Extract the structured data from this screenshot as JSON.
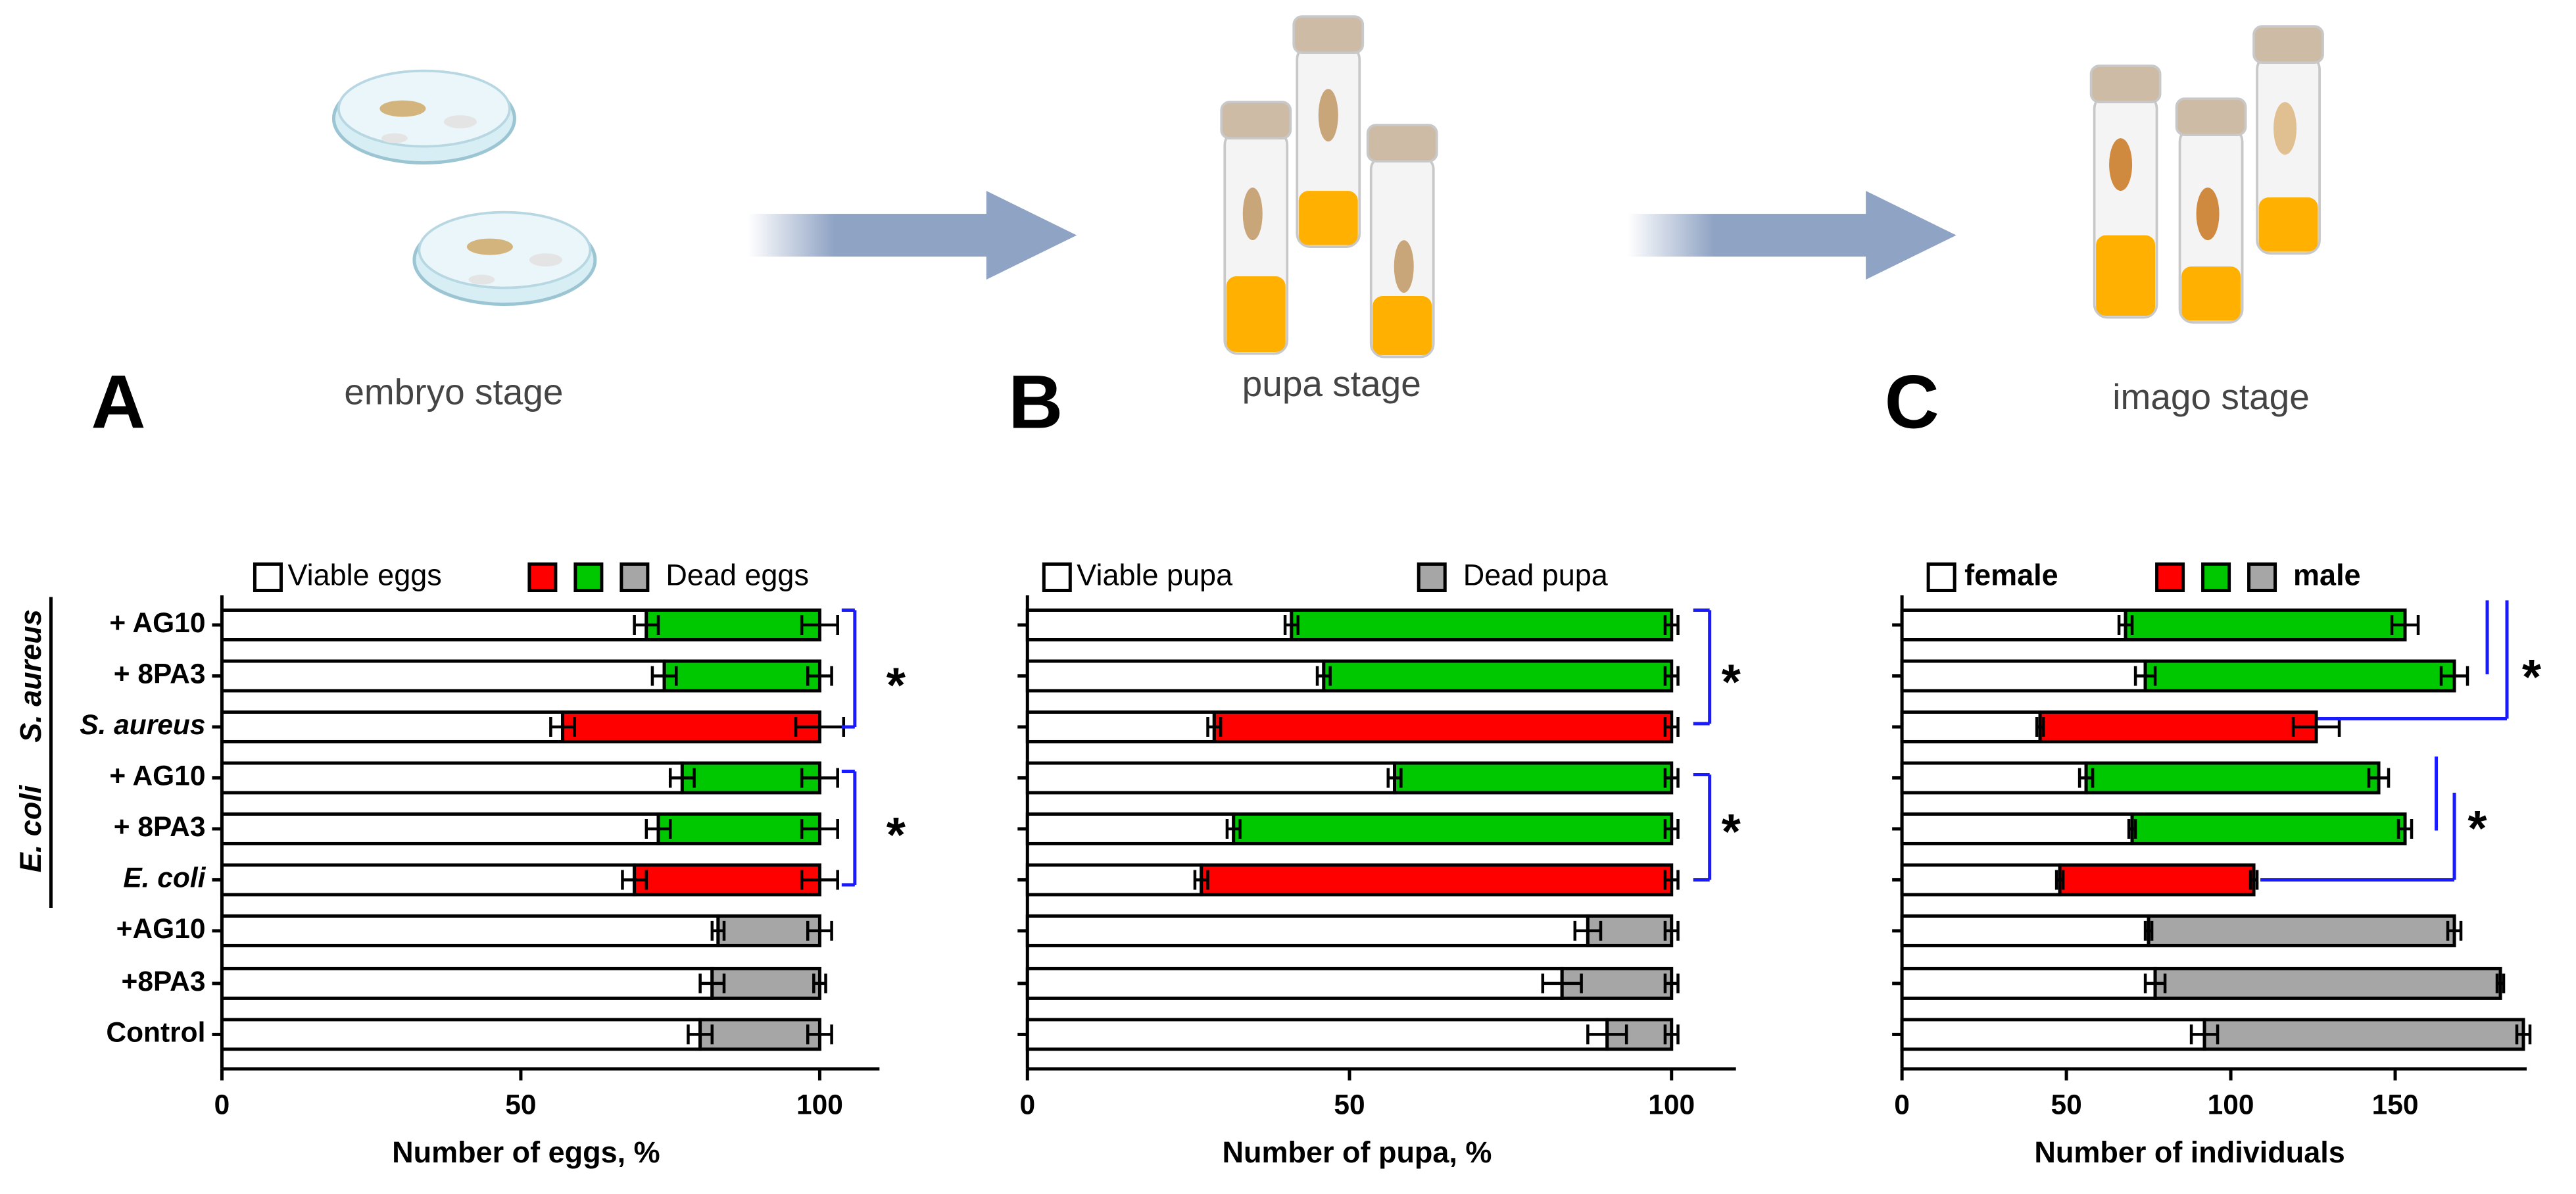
{
  "illustration": {
    "panels": [
      "A",
      "B",
      "C"
    ],
    "stages": [
      "embryo stage",
      "pupa stage",
      "imago stage"
    ]
  },
  "chart_data": [
    {
      "type": "stacked-bar-horizontal",
      "categories": [
        "+ AG10",
        "+ 8PA3",
        "S. aureus",
        "+ AG10",
        "+ 8PA3",
        "E. coli",
        "+AG10",
        "+8PA3",
        "Control"
      ],
      "group_labels": [
        "S. aureus",
        "E. coli"
      ],
      "series": [
        {
          "name": "Viable eggs",
          "color": "#ffffff",
          "values": [
            71,
            74,
            57,
            77,
            73,
            69,
            83,
            82,
            80
          ],
          "errors": [
            2,
            2,
            2,
            2,
            2,
            2,
            1,
            2,
            2
          ]
        },
        {
          "name": "Dead eggs",
          "legend_colors": [
            "#ff0000",
            "#00c800",
            "#a6a6a6"
          ],
          "colors": [
            "#00c800",
            "#00c800",
            "#ff0000",
            "#00c800",
            "#00c800",
            "#ff0000",
            "#a6a6a6",
            "#a6a6a6",
            "#a6a6a6"
          ],
          "values": [
            29,
            26,
            43,
            23,
            27,
            31,
            17,
            18,
            20
          ],
          "errors": [
            3,
            2,
            4,
            3,
            3,
            3,
            2,
            1,
            2
          ]
        }
      ],
      "xlim": [
        0,
        110
      ],
      "xticks": [
        0,
        50,
        100
      ],
      "xlabel": "Number of eggs, %",
      "significance": [
        "*",
        "*"
      ]
    },
    {
      "type": "stacked-bar-horizontal",
      "categories": [
        null,
        null,
        null,
        null,
        null,
        null,
        null,
        null,
        null
      ],
      "series": [
        {
          "name": "Viable pupa",
          "color": "#ffffff",
          "values": [
            41,
            46,
            29,
            57,
            32,
            27,
            87,
            83,
            90
          ],
          "errors": [
            1,
            1,
            1,
            1,
            1,
            1,
            2,
            3,
            3
          ]
        },
        {
          "name": "Dead pupa",
          "legend_colors": [
            "#a6a6a6"
          ],
          "colors": [
            "#00c800",
            "#00c800",
            "#ff0000",
            "#00c800",
            "#00c800",
            "#ff0000",
            "#a6a6a6",
            "#a6a6a6",
            "#a6a6a6"
          ],
          "values": [
            59,
            54,
            71,
            43,
            68,
            73,
            13,
            17,
            10
          ],
          "errors": [
            1,
            1,
            1,
            1,
            1,
            1,
            1,
            1,
            1
          ]
        }
      ],
      "xlim": [
        0,
        110
      ],
      "xticks": [
        0,
        50,
        100
      ],
      "xlabel": "Number of pupa, %",
      "significance": [
        "*",
        "*"
      ]
    },
    {
      "type": "stacked-bar-horizontal",
      "categories": [
        null,
        null,
        null,
        null,
        null,
        null,
        null,
        null,
        null
      ],
      "series": [
        {
          "name": "female",
          "color": "#ffffff",
          "values": [
            68,
            74,
            42,
            56,
            70,
            48,
            75,
            77,
            92
          ],
          "errors": [
            2,
            3,
            1,
            2,
            1,
            1,
            1,
            3,
            4
          ]
        },
        {
          "name": "male",
          "legend_colors": [
            "#ff0000",
            "#00c800",
            "#a6a6a6"
          ],
          "colors": [
            "#00c800",
            "#00c800",
            "#ff0000",
            "#00c800",
            "#00c800",
            "#ff0000",
            "#a6a6a6",
            "#a6a6a6",
            "#a6a6a6"
          ],
          "values": [
            85,
            94,
            84,
            89,
            83,
            59,
            93,
            105,
            97
          ],
          "errors": [
            4,
            4,
            7,
            3,
            2,
            1,
            2,
            1,
            2
          ]
        }
      ],
      "xlim": [
        0,
        190
      ],
      "xticks": [
        0,
        50,
        100,
        150
      ],
      "xlabel": "Number of individuals",
      "significance": [
        "*",
        "*"
      ]
    }
  ]
}
